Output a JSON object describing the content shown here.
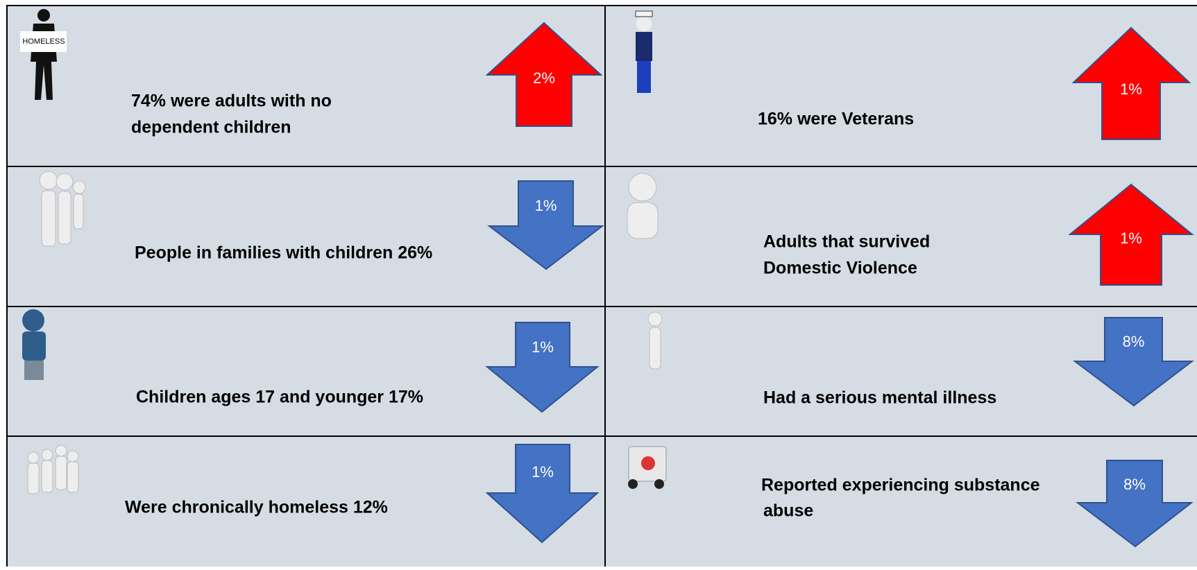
{
  "sign": "HOMELESS",
  "cells": [
    {
      "lines": [
        "74% were adults with no",
        "dependent children"
      ],
      "arrow": {
        "direction": "up",
        "label": "2%",
        "color": "#ff0000"
      }
    },
    {
      "lines": [
        "16% were Veterans"
      ],
      "arrow": {
        "direction": "up",
        "label": "1%",
        "color": "#ff0000"
      }
    },
    {
      "lines": [
        "People in families with children 26%"
      ],
      "arrow": {
        "direction": "down",
        "label": "1%",
        "color": "#4472c4"
      }
    },
    {
      "lines": [
        "Adults that survived",
        "Domestic Violence"
      ],
      "arrow": {
        "direction": "up",
        "label": "1%",
        "color": "#ff0000"
      }
    },
    {
      "lines": [
        "Children ages 17 and younger 17%"
      ],
      "arrow": {
        "direction": "down",
        "label": "1%",
        "color": "#4472c4"
      }
    },
    {
      "lines": [
        "Had a serious mental illness"
      ],
      "arrow": {
        "direction": "down",
        "label": "8%",
        "color": "#4472c4"
      }
    },
    {
      "lines": [
        "Were chronically homeless 12%"
      ],
      "arrow": {
        "direction": "down",
        "label": "1%",
        "color": "#4472c4"
      }
    },
    {
      "lines": [
        "Reported experiencing substance",
        "abuse"
      ],
      "arrow": {
        "direction": "down",
        "label": "8%",
        "color": "#4472c4"
      }
    }
  ]
}
